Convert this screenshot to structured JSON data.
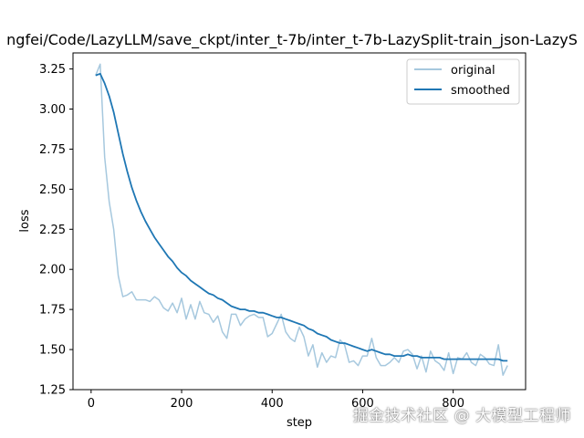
{
  "chart_data": {
    "type": "line",
    "title": "ngfei/Code/LazyLLM/save_ckpt/inter_t-7b/inter_t-7b-LazySplit-train_json-LazyS",
    "xlabel": "step",
    "ylabel": "loss",
    "xlim": [
      -40,
      960
    ],
    "ylim": [
      1.25,
      3.35
    ],
    "xticks": [
      0,
      200,
      400,
      600,
      800
    ],
    "yticks": [
      1.25,
      1.5,
      1.75,
      2.0,
      2.25,
      2.5,
      2.75,
      3.0,
      3.25
    ],
    "ytick_labels": [
      "1.25",
      "1.50",
      "1.75",
      "2.00",
      "2.25",
      "2.50",
      "2.75",
      "3.00",
      "3.25"
    ],
    "xtick_labels": [
      "0",
      "200",
      "400",
      "600",
      "800"
    ],
    "legend_position": "top-right",
    "series": [
      {
        "name": "original",
        "color": "#a6c8de",
        "x": [
          10,
          20,
          30,
          40,
          50,
          60,
          70,
          80,
          90,
          100,
          110,
          120,
          130,
          140,
          150,
          160,
          170,
          180,
          190,
          200,
          210,
          220,
          230,
          240,
          250,
          260,
          270,
          280,
          290,
          300,
          310,
          320,
          330,
          340,
          350,
          360,
          370,
          380,
          390,
          400,
          410,
          420,
          430,
          440,
          450,
          460,
          470,
          480,
          490,
          500,
          510,
          520,
          530,
          540,
          550,
          560,
          570,
          580,
          590,
          600,
          610,
          620,
          630,
          640,
          650,
          660,
          670,
          680,
          690,
          700,
          710,
          720,
          730,
          740,
          750,
          760,
          770,
          780,
          790,
          800,
          810,
          820,
          830,
          840,
          850,
          860,
          870,
          880,
          890,
          900,
          910,
          920
        ],
        "y": [
          3.21,
          3.28,
          2.7,
          2.42,
          2.25,
          1.96,
          1.83,
          1.84,
          1.86,
          1.81,
          1.81,
          1.81,
          1.8,
          1.83,
          1.81,
          1.76,
          1.74,
          1.79,
          1.73,
          1.82,
          1.69,
          1.78,
          1.69,
          1.8,
          1.73,
          1.72,
          1.67,
          1.71,
          1.61,
          1.57,
          1.72,
          1.72,
          1.65,
          1.69,
          1.71,
          1.72,
          1.7,
          1.7,
          1.58,
          1.6,
          1.66,
          1.72,
          1.61,
          1.57,
          1.55,
          1.64,
          1.58,
          1.46,
          1.53,
          1.39,
          1.48,
          1.42,
          1.46,
          1.45,
          1.56,
          1.53,
          1.42,
          1.43,
          1.4,
          1.46,
          1.46,
          1.57,
          1.45,
          1.4,
          1.4,
          1.42,
          1.45,
          1.42,
          1.49,
          1.5,
          1.47,
          1.38,
          1.46,
          1.36,
          1.49,
          1.43,
          1.41,
          1.37,
          1.48,
          1.35,
          1.45,
          1.44,
          1.48,
          1.42,
          1.4,
          1.47,
          1.45,
          1.41,
          1.4,
          1.53,
          1.34,
          1.4
        ]
      },
      {
        "name": "smoothed",
        "color": "#1f77b4",
        "x": [
          10,
          20,
          30,
          40,
          50,
          60,
          70,
          80,
          90,
          100,
          110,
          120,
          130,
          140,
          150,
          160,
          170,
          180,
          190,
          200,
          210,
          220,
          230,
          240,
          250,
          260,
          270,
          280,
          290,
          300,
          310,
          320,
          330,
          340,
          350,
          360,
          370,
          380,
          390,
          400,
          410,
          420,
          430,
          440,
          450,
          460,
          470,
          480,
          490,
          500,
          510,
          520,
          530,
          540,
          550,
          560,
          570,
          580,
          590,
          600,
          610,
          620,
          630,
          640,
          650,
          660,
          670,
          680,
          690,
          700,
          710,
          720,
          730,
          740,
          750,
          760,
          770,
          780,
          790,
          800,
          810,
          820,
          830,
          840,
          850,
          860,
          870,
          880,
          890,
          900,
          910,
          920
        ],
        "y": [
          3.21,
          3.22,
          3.16,
          3.08,
          2.98,
          2.85,
          2.72,
          2.61,
          2.51,
          2.43,
          2.36,
          2.3,
          2.25,
          2.2,
          2.16,
          2.12,
          2.08,
          2.05,
          2.01,
          1.98,
          1.96,
          1.93,
          1.91,
          1.89,
          1.87,
          1.85,
          1.84,
          1.82,
          1.81,
          1.79,
          1.77,
          1.76,
          1.75,
          1.75,
          1.74,
          1.74,
          1.73,
          1.73,
          1.72,
          1.71,
          1.7,
          1.7,
          1.69,
          1.68,
          1.67,
          1.66,
          1.65,
          1.63,
          1.62,
          1.6,
          1.59,
          1.58,
          1.56,
          1.55,
          1.54,
          1.54,
          1.53,
          1.52,
          1.51,
          1.5,
          1.49,
          1.5,
          1.49,
          1.48,
          1.47,
          1.47,
          1.46,
          1.46,
          1.46,
          1.47,
          1.46,
          1.46,
          1.45,
          1.45,
          1.45,
          1.45,
          1.45,
          1.44,
          1.44,
          1.44,
          1.44,
          1.44,
          1.44,
          1.44,
          1.44,
          1.44,
          1.44,
          1.44,
          1.44,
          1.44,
          1.43,
          1.43
        ]
      }
    ]
  },
  "watermark": "掘金技术社区 @ 大模型工程师"
}
